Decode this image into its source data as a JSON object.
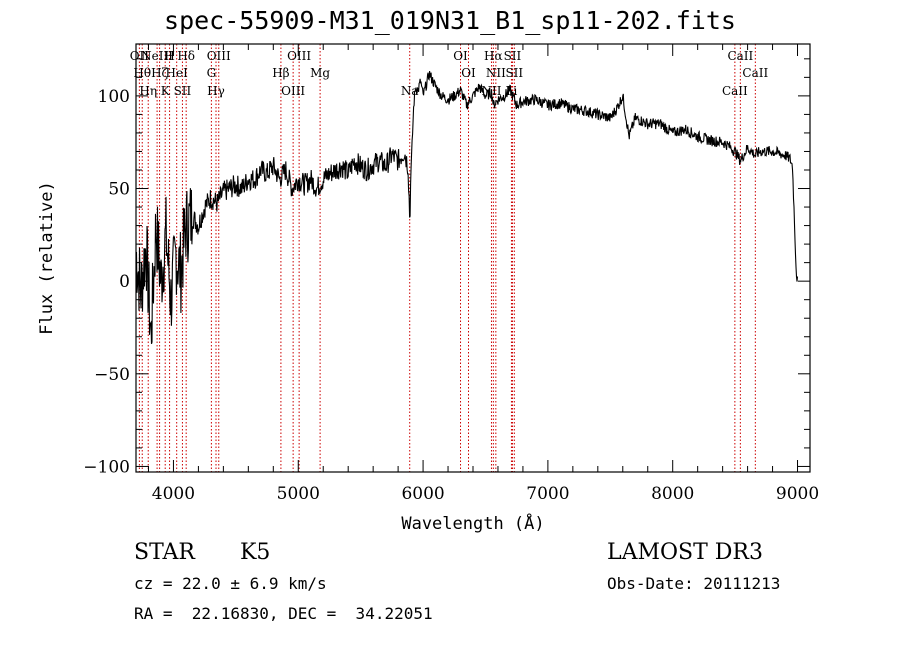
{
  "chart_data": {
    "type": "line",
    "title": "spec-55909-M31_019N31_B1_sp11-202.fits",
    "xlabel": "Wavelength (Å)",
    "ylabel": "Flux (relative)",
    "xlim": [
      3700,
      9100
    ],
    "ylim": [
      -103,
      128
    ],
    "xticks": [
      4000,
      5000,
      6000,
      7000,
      8000,
      9000
    ],
    "yticks": [
      -100,
      -50,
      0,
      50,
      100
    ],
    "series": [
      {
        "name": "flux",
        "x": [
          3700,
          3740,
          3780,
          3820,
          3860,
          3900,
          3940,
          3980,
          4020,
          4060,
          4100,
          4150,
          4200,
          4250,
          4300,
          4350,
          4400,
          4450,
          4500,
          4550,
          4600,
          4650,
          4700,
          4750,
          4800,
          4850,
          4900,
          4950,
          5000,
          5050,
          5100,
          5150,
          5200,
          5250,
          5300,
          5350,
          5400,
          5450,
          5500,
          5550,
          5600,
          5650,
          5700,
          5750,
          5800,
          5850,
          5880,
          5895,
          5900,
          5910,
          5925,
          5940,
          5960,
          5980,
          6000,
          6050,
          6100,
          6150,
          6200,
          6250,
          6300,
          6350,
          6400,
          6450,
          6500,
          6550,
          6563,
          6600,
          6650,
          6700,
          6750,
          6800,
          6900,
          7000,
          7100,
          7200,
          7300,
          7400,
          7500,
          7550,
          7600,
          7650,
          7700,
          7800,
          7900,
          8000,
          8100,
          8200,
          8300,
          8400,
          8450,
          8500,
          8542,
          8600,
          8662,
          8700,
          8800,
          8900,
          8940,
          8960,
          8990,
          9000
        ],
        "y": [
          15,
          -5,
          20,
          -30,
          30,
          0,
          25,
          -10,
          15,
          5,
          30,
          35,
          30,
          40,
          45,
          42,
          48,
          50,
          52,
          50,
          55,
          55,
          60,
          58,
          62,
          55,
          60,
          50,
          55,
          52,
          55,
          50,
          55,
          58,
          60,
          62,
          58,
          65,
          62,
          60,
          63,
          65,
          62,
          68,
          65,
          70,
          62,
          30,
          55,
          70,
          95,
          105,
          103,
          108,
          100,
          112,
          105,
          100,
          98,
          100,
          103,
          95,
          100,
          105,
          100,
          102,
          95,
          98,
          100,
          103,
          95,
          97,
          98,
          95,
          96,
          93,
          92,
          90,
          88,
          93,
          100,
          78,
          88,
          85,
          85,
          80,
          82,
          78,
          76,
          75,
          73,
          70,
          65,
          72,
          68,
          70,
          70,
          68,
          66,
          62,
          5,
          0
        ]
      }
    ],
    "lines": [
      {
        "wl": 3727,
        "label": "OII"
      },
      {
        "wl": 3750,
        "label": "Hθ"
      },
      {
        "wl": 3798,
        "label": "Hη"
      },
      {
        "wl": 3869,
        "label": "NeIII"
      },
      {
        "wl": 3889,
        "label": "Hζ"
      },
      {
        "wl": 3934,
        "label": "K"
      },
      {
        "wl": 3969,
        "label": "H"
      },
      {
        "wl": 4026,
        "label": "HeI"
      },
      {
        "wl": 4072,
        "label": "SII"
      },
      {
        "wl": 4102,
        "label": "Hδ"
      },
      {
        "wl": 4304,
        "label": "G"
      },
      {
        "wl": 4341,
        "label": "Hγ"
      },
      {
        "wl": 4363,
        "label": "OIII"
      },
      {
        "wl": 4861,
        "label": "Hβ"
      },
      {
        "wl": 4959,
        "label": "OIII"
      },
      {
        "wl": 5007,
        "label": "OIII"
      },
      {
        "wl": 5175,
        "label": "Mg"
      },
      {
        "wl": 5893,
        "label": "Na"
      },
      {
        "wl": 6300,
        "label": "OI"
      },
      {
        "wl": 6364,
        "label": "OI"
      },
      {
        "wl": 6548,
        "label": "NII"
      },
      {
        "wl": 6563,
        "label": "Hα"
      },
      {
        "wl": 6583,
        "label": "NII"
      },
      {
        "wl": 6708,
        "label": "Li"
      },
      {
        "wl": 6716,
        "label": "SII"
      },
      {
        "wl": 6731,
        "label": "SII"
      },
      {
        "wl": 8498,
        "label": "CaII"
      },
      {
        "wl": 8542,
        "label": "CaII"
      },
      {
        "wl": 8662,
        "label": "CaII"
      }
    ]
  },
  "info": {
    "class": "STAR",
    "subclass": "K5",
    "survey": "LAMOST DR3",
    "cz": "cz = 22.0 ± 6.9 km/s",
    "obsdate": "Obs-Date: 20111213",
    "radec": "RA =  22.16830, DEC =  34.22051"
  }
}
